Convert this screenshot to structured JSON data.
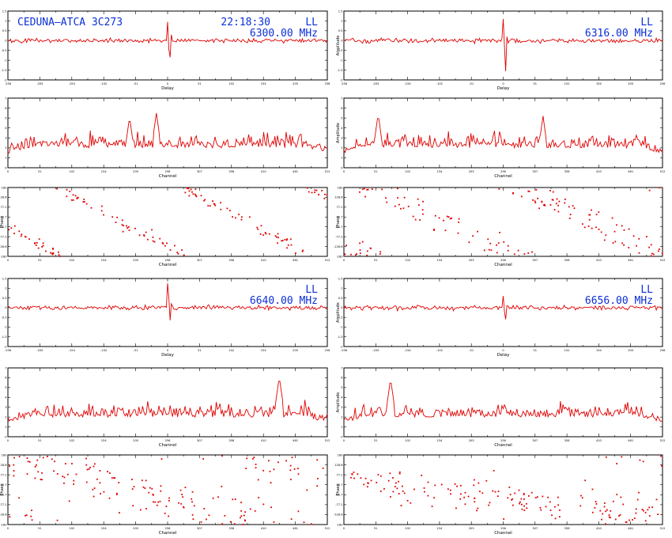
{
  "figure": {
    "title": "CEDUNA–ATCA 3C273",
    "time": "22:18:30",
    "colors": {
      "trace": "#e00000",
      "annotation": "#0b2fd6",
      "frame": "#000000"
    }
  },
  "chart_data": [
    {
      "name": "6300.00 MHz",
      "pol": "LL",
      "freq": "6300.00 MHz",
      "delay": {
        "type": "line",
        "xlabel": "Delay",
        "ylabel": "",
        "xlim": [
          -256,
          256
        ],
        "ylim": [
          -2,
          1.5
        ],
        "baseline": 0.0,
        "noise": 0.08,
        "peak": {
          "x": 0,
          "values": [
            0.95,
            -0.45,
            -0.85,
            0.3
          ]
        }
      },
      "channel": {
        "type": "line",
        "xlabel": "Channel",
        "ylabel": "",
        "xlim": [
          0,
          512
        ],
        "ylim": [
          0,
          7
        ],
        "baseline": 2.3,
        "noise": 1.0,
        "peaks": [
          {
            "x": 238,
            "value": 5.5
          },
          {
            "x": 195,
            "value": 5.1
          }
        ]
      },
      "phase": {
        "type": "scatter",
        "xlabel": "Channel",
        "ylabel": "Phase",
        "xlim": [
          0,
          512
        ],
        "ylim": [
          -180,
          180
        ],
        "slope": -1.8,
        "intercepts": [
          330,
          -30
        ],
        "n": 150
      }
    },
    {
      "name": "6316.00 MHz",
      "pol": "LL",
      "freq": "6316.00 MHz",
      "delay": {
        "type": "line",
        "xlabel": "Delay",
        "ylabel": "Amplitude",
        "xlim": [
          -256,
          256
        ],
        "ylim": [
          -2,
          1.5
        ],
        "baseline": 0.0,
        "noise": 0.08,
        "peak": {
          "x": 0,
          "values": [
            1.1,
            -0.3,
            -1.55,
            0.2
          ]
        }
      },
      "channel": {
        "type": "line",
        "xlabel": "Channel",
        "ylabel": "Amplitude",
        "xlim": [
          0,
          512
        ],
        "ylim": [
          0,
          7
        ],
        "baseline": 2.3,
        "noise": 1.0,
        "peaks": [
          {
            "x": 55,
            "value": 5.4
          },
          {
            "x": 320,
            "value": 5.2
          }
        ]
      },
      "phase": {
        "type": "scatter",
        "xlabel": "Channel",
        "ylabel": "Phase",
        "xlim": [
          0,
          512
        ],
        "ylim": [
          -180,
          180
        ],
        "slope": -1.5,
        "intercepts": [
          210,
          -90
        ],
        "n": 150
      }
    },
    {
      "name": "6640.00 MHz",
      "pol": "LL",
      "freq": "6640.00 MHz",
      "delay": {
        "type": "line",
        "xlabel": "Delay",
        "ylabel": "",
        "xlim": [
          -256,
          256
        ],
        "ylim": [
          -2,
          1.5
        ],
        "baseline": 0.0,
        "noise": 0.08,
        "peak": {
          "x": 0,
          "values": [
            1.25,
            0.5,
            -0.65,
            0.2
          ]
        }
      },
      "channel": {
        "type": "line",
        "xlabel": "Channel",
        "ylabel": "",
        "xlim": [
          0,
          512
        ],
        "ylim": [
          0,
          7
        ],
        "baseline": 2.3,
        "noise": 1.0,
        "peaks": [
          {
            "x": 435,
            "value": 6.1
          }
        ]
      },
      "phase": {
        "type": "scatter",
        "xlabel": "Channel",
        "ylabel": "Phase",
        "xlim": [
          0,
          512
        ],
        "ylim": [
          -180,
          180
        ],
        "slope": -0.9,
        "intercepts": [
          150,
          -140
        ],
        "n": 170
      }
    },
    {
      "name": "6656.00 MHz",
      "pol": "LL",
      "freq": "6656.00 MHz",
      "delay": {
        "type": "line",
        "xlabel": "Delay",
        "ylabel": "Amplitude",
        "xlim": [
          -256,
          256
        ],
        "ylim": [
          -2,
          1.5
        ],
        "baseline": 0.0,
        "noise": 0.08,
        "peak": {
          "x": 0,
          "values": [
            0.6,
            -0.2,
            -0.6,
            0.1
          ]
        }
      },
      "channel": {
        "type": "line",
        "xlabel": "Channel",
        "ylabel": "Amplitude",
        "xlim": [
          0,
          512
        ],
        "ylim": [
          0,
          7
        ],
        "baseline": 2.3,
        "noise": 1.0,
        "peaks": [
          {
            "x": 75,
            "value": 5.9
          }
        ]
      },
      "phase": {
        "type": "scatter",
        "xlabel": "Channel",
        "ylabel": "Phase",
        "xlim": [
          0,
          512
        ],
        "ylim": [
          -180,
          180
        ],
        "slope": -0.4,
        "intercepts": [
          60
        ],
        "n": 170
      }
    }
  ]
}
